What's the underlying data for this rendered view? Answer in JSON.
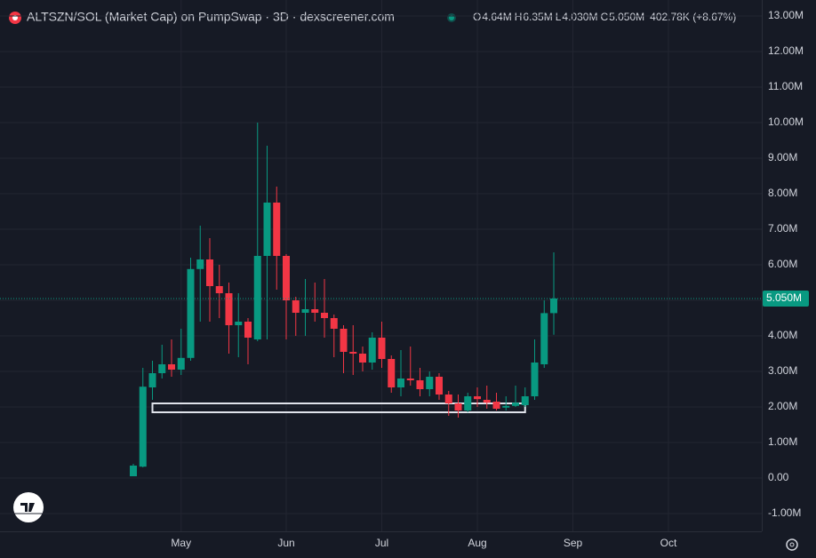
{
  "header": {
    "title": "ALTSZN/SOL (Market Cap) on PumpSwap · 3D · dexscreener.com",
    "ohlc": [
      {
        "key": "O",
        "text": "4.64M"
      },
      {
        "key": "H",
        "text": "6.35M"
      },
      {
        "key": "L",
        "text": "4.030M"
      },
      {
        "key": "C",
        "text": "5.050M"
      }
    ],
    "change": "402.78K (+8.67%)"
  },
  "chart_data": {
    "type": "candlestick",
    "categories": [
      null,
      null,
      null,
      null,
      null,
      "May",
      null,
      null,
      null,
      null,
      null,
      null,
      null,
      null,
      null,
      null,
      "Jun",
      null,
      null,
      null,
      null,
      null,
      null,
      null,
      null,
      null,
      "Jul",
      null,
      null,
      null,
      null,
      null,
      null,
      null,
      null,
      null,
      "Aug",
      null,
      null,
      null,
      null,
      null,
      null,
      null,
      null,
      null,
      "Sep",
      null,
      null,
      null,
      null,
      null,
      null,
      null,
      null,
      null,
      "Oct"
    ],
    "open": [
      0.05,
      0.32,
      2.55,
      2.95,
      3.2,
      3.05,
      3.38,
      5.88,
      6.15,
      5.4,
      5.2,
      4.3,
      4.4,
      3.9,
      6.25,
      7.75,
      6.25,
      5.0,
      4.65,
      4.75,
      4.65,
      4.5,
      4.2,
      3.55,
      3.5,
      3.25,
      3.95,
      3.35,
      2.55,
      2.8,
      2.75,
      2.5,
      2.85,
      2.35,
      2.1,
      1.9,
      2.3,
      2.2,
      2.15,
      1.98,
      2.03,
      2.05,
      2.3,
      3.2,
      4.64,
      null,
      null,
      null,
      null,
      null,
      null,
      null,
      null,
      null,
      null,
      null,
      null
    ],
    "high": [
      0.4,
      3.1,
      3.3,
      3.75,
      3.9,
      4.2,
      6.2,
      7.1,
      6.75,
      6.0,
      5.5,
      5.2,
      4.5,
      10.0,
      9.35,
      8.2,
      6.3,
      5.1,
      5.6,
      5.5,
      5.6,
      4.6,
      4.3,
      4.3,
      3.7,
      4.1,
      4.4,
      3.45,
      3.6,
      3.7,
      3.1,
      3.0,
      2.95,
      2.45,
      2.35,
      2.4,
      2.55,
      2.6,
      2.4,
      2.3,
      2.6,
      2.55,
      3.9,
      5.0,
      6.35,
      null,
      null,
      null,
      null,
      null,
      null,
      null,
      null,
      null,
      null,
      null,
      null
    ],
    "low": [
      0.05,
      0.3,
      2.2,
      2.8,
      2.85,
      2.9,
      3.3,
      4.4,
      4.4,
      4.5,
      3.5,
      3.4,
      3.2,
      3.85,
      3.9,
      5.3,
      3.9,
      4.0,
      4.0,
      4.4,
      3.95,
      3.4,
      2.95,
      2.9,
      3.0,
      3.05,
      3.1,
      2.4,
      2.3,
      2.6,
      2.3,
      2.3,
      2.2,
      1.75,
      1.7,
      1.85,
      2.0,
      1.95,
      1.9,
      1.9,
      2.0,
      2.0,
      2.2,
      3.1,
      4.03,
      null,
      null,
      null,
      null,
      null,
      null,
      null,
      null,
      null,
      null,
      null,
      null
    ],
    "close": [
      0.35,
      2.57,
      2.95,
      3.2,
      3.05,
      3.38,
      5.88,
      6.15,
      5.4,
      5.2,
      4.3,
      4.4,
      3.95,
      6.25,
      7.75,
      6.25,
      5.0,
      4.65,
      4.75,
      4.65,
      4.5,
      4.2,
      3.55,
      3.5,
      3.25,
      3.95,
      3.35,
      2.55,
      2.8,
      2.75,
      2.5,
      2.85,
      2.35,
      2.1,
      1.9,
      2.3,
      2.22,
      2.12,
      1.95,
      2.03,
      2.12,
      2.3,
      3.25,
      4.64,
      5.05,
      null,
      null,
      null,
      null,
      null,
      null,
      null,
      null,
      null,
      null,
      null,
      null
    ],
    "up_color": "#089981",
    "down_color": "#f23645",
    "ylim": [
      -1.5,
      13.45
    ],
    "yticks": [
      {
        "value": -1,
        "label": "-1.00M"
      },
      {
        "value": 0,
        "label": "0.00"
      },
      {
        "value": 1,
        "label": "1.00M"
      },
      {
        "value": 2,
        "label": "2.00M"
      },
      {
        "value": 3,
        "label": "3.00M"
      },
      {
        "value": 4,
        "label": "4.00M"
      },
      {
        "value": 5,
        "label": "5.00M"
      },
      {
        "value": 6,
        "label": "6.00M"
      },
      {
        "value": 7,
        "label": "7.00M"
      },
      {
        "value": 8,
        "label": "8.00M"
      },
      {
        "value": 9,
        "label": "9.00M"
      },
      {
        "value": 10,
        "label": "10.00M"
      },
      {
        "value": 11,
        "label": "11.00M"
      },
      {
        "value": 12,
        "label": "12.00M"
      },
      {
        "value": 13,
        "label": "13.00M"
      }
    ],
    "last_price": {
      "value": 5.05,
      "label": "5.050M"
    },
    "box": {
      "start": 2,
      "end": 41,
      "low": 1.85,
      "high": 2.1
    },
    "grid": true
  }
}
